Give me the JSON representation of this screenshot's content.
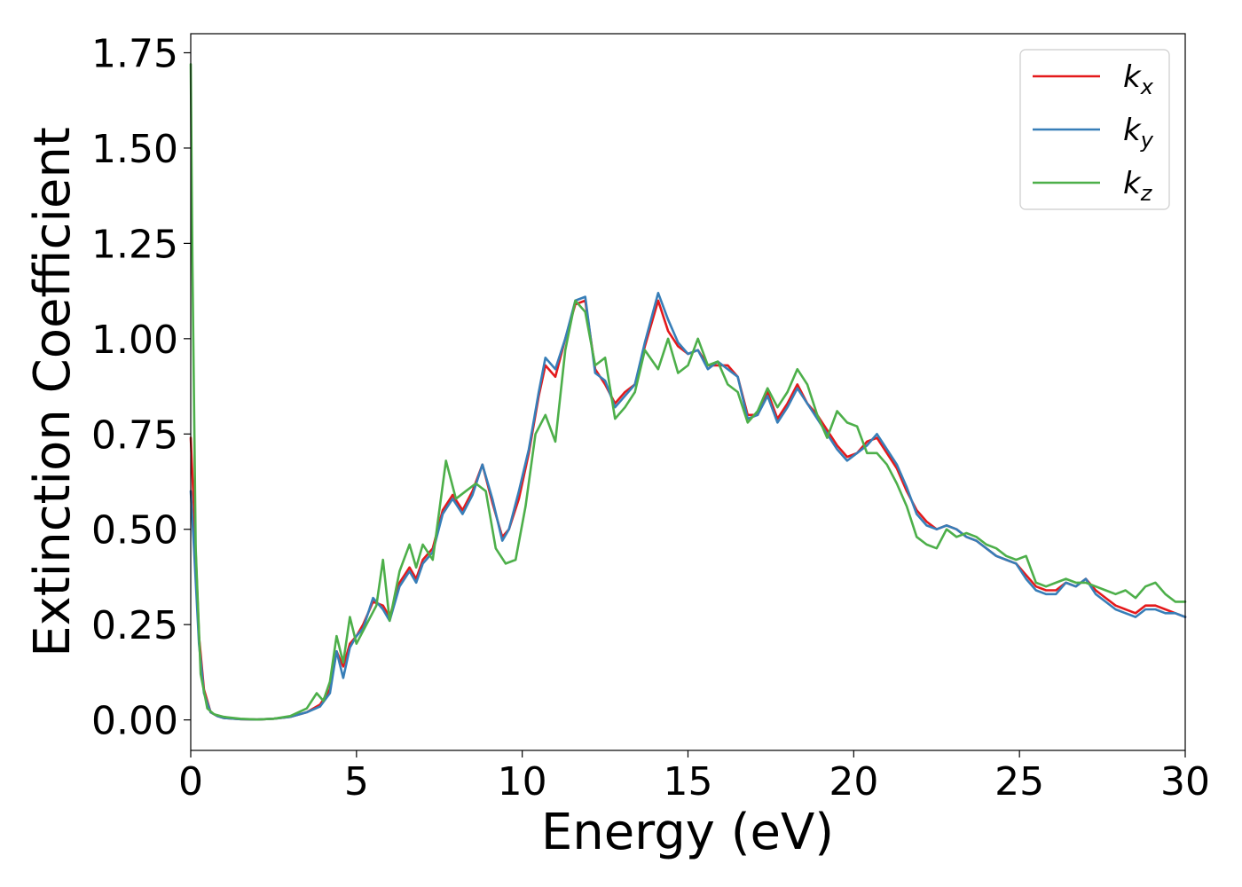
{
  "chart_data": {
    "type": "line",
    "xlabel": "Energy (eV)",
    "ylabel": "Extinction Coefficient",
    "xlim": [
      0,
      30
    ],
    "ylim": [
      -0.08,
      1.8
    ],
    "xticks": [
      "0",
      "5",
      "10",
      "15",
      "20",
      "25",
      "30"
    ],
    "yticks": [
      "0.00",
      "0.25",
      "0.50",
      "0.75",
      "1.00",
      "1.25",
      "1.50",
      "1.75"
    ],
    "grid": false,
    "legend_position": "top-right",
    "series": [
      {
        "name": "k_x",
        "label_main": "k",
        "label_sub": "x",
        "color": "#e41a1c",
        "x": [
          0,
          0.1,
          0.25,
          0.4,
          0.6,
          0.8,
          1.0,
          1.5,
          2.0,
          2.5,
          3.0,
          3.5,
          3.9,
          4.2,
          4.4,
          4.6,
          4.8,
          5.0,
          5.2,
          5.5,
          5.8,
          6.0,
          6.3,
          6.6,
          6.8,
          7.0,
          7.3,
          7.6,
          7.9,
          8.2,
          8.5,
          8.8,
          9.1,
          9.4,
          9.6,
          9.9,
          10.2,
          10.5,
          10.7,
          11.0,
          11.3,
          11.6,
          11.9,
          12.2,
          12.5,
          12.8,
          13.1,
          13.4,
          13.7,
          14.1,
          14.4,
          14.7,
          15.0,
          15.3,
          15.6,
          15.9,
          16.2,
          16.5,
          16.8,
          17.1,
          17.4,
          17.7,
          18.0,
          18.3,
          18.6,
          18.9,
          19.2,
          19.5,
          19.8,
          20.1,
          20.4,
          20.7,
          21.0,
          21.3,
          21.6,
          21.9,
          22.2,
          22.5,
          22.8,
          23.1,
          23.4,
          23.7,
          24.0,
          24.3,
          24.6,
          24.9,
          25.2,
          25.5,
          25.8,
          26.1,
          26.4,
          26.7,
          27.0,
          27.3,
          27.6,
          27.9,
          28.2,
          28.5,
          28.8,
          29.1,
          29.4,
          29.7,
          30.0
        ],
        "y": [
          0.74,
          0.55,
          0.22,
          0.08,
          0.02,
          0.01,
          0.005,
          0.002,
          0.001,
          0.003,
          0.008,
          0.02,
          0.04,
          0.08,
          0.18,
          0.14,
          0.2,
          0.22,
          0.25,
          0.31,
          0.3,
          0.27,
          0.36,
          0.4,
          0.37,
          0.42,
          0.45,
          0.55,
          0.59,
          0.55,
          0.6,
          0.67,
          0.57,
          0.48,
          0.5,
          0.58,
          0.7,
          0.85,
          0.93,
          0.9,
          1.0,
          1.09,
          1.1,
          0.92,
          0.88,
          0.83,
          0.86,
          0.88,
          0.98,
          1.1,
          1.02,
          0.98,
          0.96,
          0.97,
          0.93,
          0.93,
          0.93,
          0.9,
          0.8,
          0.8,
          0.86,
          0.79,
          0.83,
          0.88,
          0.83,
          0.8,
          0.76,
          0.72,
          0.69,
          0.7,
          0.73,
          0.74,
          0.7,
          0.66,
          0.6,
          0.55,
          0.52,
          0.5,
          0.51,
          0.5,
          0.48,
          0.47,
          0.45,
          0.43,
          0.42,
          0.41,
          0.38,
          0.35,
          0.34,
          0.34,
          0.36,
          0.35,
          0.37,
          0.34,
          0.32,
          0.3,
          0.29,
          0.28,
          0.3,
          0.3,
          0.29,
          0.28,
          0.27
        ]
      },
      {
        "name": "k_y",
        "label_main": "k",
        "label_sub": "y",
        "color": "#377eb8",
        "x": [
          0,
          0.1,
          0.25,
          0.4,
          0.6,
          0.8,
          1.0,
          1.5,
          2.0,
          2.5,
          3.0,
          3.5,
          3.9,
          4.2,
          4.4,
          4.6,
          4.8,
          5.0,
          5.2,
          5.5,
          5.8,
          6.0,
          6.3,
          6.6,
          6.8,
          7.0,
          7.3,
          7.6,
          7.9,
          8.2,
          8.5,
          8.8,
          9.1,
          9.4,
          9.6,
          9.9,
          10.2,
          10.5,
          10.7,
          11.0,
          11.3,
          11.6,
          11.9,
          12.2,
          12.5,
          12.8,
          13.1,
          13.4,
          13.7,
          14.1,
          14.4,
          14.7,
          15.0,
          15.3,
          15.6,
          15.9,
          16.2,
          16.5,
          16.8,
          17.1,
          17.4,
          17.7,
          18.0,
          18.3,
          18.6,
          18.9,
          19.2,
          19.5,
          19.8,
          20.1,
          20.4,
          20.7,
          21.0,
          21.3,
          21.6,
          21.9,
          22.2,
          22.5,
          22.8,
          23.1,
          23.4,
          23.7,
          24.0,
          24.3,
          24.6,
          24.9,
          25.2,
          25.5,
          25.8,
          26.1,
          26.4,
          26.7,
          27.0,
          27.3,
          27.6,
          27.9,
          28.2,
          28.5,
          28.8,
          29.1,
          29.4,
          29.7,
          30.0
        ],
        "y": [
          0.6,
          0.45,
          0.2,
          0.07,
          0.02,
          0.01,
          0.005,
          0.002,
          0.001,
          0.003,
          0.008,
          0.02,
          0.035,
          0.07,
          0.18,
          0.11,
          0.19,
          0.22,
          0.24,
          0.32,
          0.29,
          0.26,
          0.35,
          0.39,
          0.36,
          0.41,
          0.44,
          0.54,
          0.58,
          0.54,
          0.59,
          0.67,
          0.58,
          0.47,
          0.5,
          0.6,
          0.71,
          0.86,
          0.95,
          0.92,
          1.0,
          1.1,
          1.11,
          0.91,
          0.89,
          0.82,
          0.85,
          0.88,
          0.99,
          1.12,
          1.05,
          0.99,
          0.96,
          0.97,
          0.92,
          0.94,
          0.92,
          0.9,
          0.79,
          0.8,
          0.85,
          0.78,
          0.82,
          0.87,
          0.83,
          0.79,
          0.75,
          0.71,
          0.68,
          0.7,
          0.72,
          0.75,
          0.71,
          0.67,
          0.61,
          0.54,
          0.51,
          0.5,
          0.51,
          0.5,
          0.48,
          0.47,
          0.45,
          0.43,
          0.42,
          0.41,
          0.37,
          0.34,
          0.33,
          0.33,
          0.36,
          0.35,
          0.37,
          0.33,
          0.31,
          0.29,
          0.28,
          0.27,
          0.29,
          0.29,
          0.28,
          0.28,
          0.27
        ]
      },
      {
        "name": "k_z",
        "label_main": "k",
        "label_sub": "z",
        "color": "#4daf4a",
        "x": [
          0,
          0.05,
          0.15,
          0.3,
          0.5,
          0.7,
          1.0,
          1.5,
          2.0,
          2.5,
          3.0,
          3.5,
          3.8,
          4.0,
          4.2,
          4.4,
          4.6,
          4.8,
          5.0,
          5.3,
          5.6,
          5.8,
          6.0,
          6.3,
          6.6,
          6.8,
          7.0,
          7.3,
          7.7,
          8.0,
          8.3,
          8.6,
          8.9,
          9.2,
          9.5,
          9.8,
          10.1,
          10.4,
          10.7,
          11.0,
          11.3,
          11.6,
          11.9,
          12.2,
          12.5,
          12.8,
          13.1,
          13.4,
          13.7,
          14.1,
          14.4,
          14.7,
          15.0,
          15.3,
          15.6,
          15.9,
          16.2,
          16.5,
          16.8,
          17.1,
          17.4,
          17.7,
          18.0,
          18.3,
          18.6,
          18.9,
          19.2,
          19.5,
          19.8,
          20.1,
          20.4,
          20.7,
          21.0,
          21.3,
          21.6,
          21.9,
          22.2,
          22.5,
          22.8,
          23.1,
          23.4,
          23.7,
          24.0,
          24.3,
          24.6,
          24.9,
          25.2,
          25.5,
          25.8,
          26.1,
          26.4,
          26.7,
          27.0,
          27.3,
          27.6,
          27.9,
          28.2,
          28.5,
          28.8,
          29.1,
          29.4,
          29.7,
          30.0
        ],
        "y": [
          1.72,
          1.2,
          0.45,
          0.12,
          0.03,
          0.015,
          0.008,
          0.003,
          0.001,
          0.003,
          0.01,
          0.03,
          0.07,
          0.05,
          0.1,
          0.22,
          0.15,
          0.27,
          0.2,
          0.25,
          0.3,
          0.42,
          0.26,
          0.39,
          0.46,
          0.4,
          0.46,
          0.42,
          0.68,
          0.58,
          0.6,
          0.62,
          0.6,
          0.45,
          0.41,
          0.42,
          0.56,
          0.75,
          0.8,
          0.73,
          0.97,
          1.1,
          1.07,
          0.93,
          0.95,
          0.79,
          0.82,
          0.86,
          0.97,
          0.92,
          1.0,
          0.91,
          0.93,
          1.0,
          0.93,
          0.94,
          0.88,
          0.86,
          0.78,
          0.81,
          0.87,
          0.82,
          0.86,
          0.92,
          0.88,
          0.8,
          0.74,
          0.81,
          0.78,
          0.77,
          0.7,
          0.7,
          0.67,
          0.62,
          0.56,
          0.48,
          0.46,
          0.45,
          0.5,
          0.48,
          0.49,
          0.48,
          0.46,
          0.45,
          0.43,
          0.42,
          0.43,
          0.36,
          0.35,
          0.36,
          0.37,
          0.36,
          0.36,
          0.35,
          0.34,
          0.33,
          0.34,
          0.32,
          0.35,
          0.36,
          0.33,
          0.31,
          0.31
        ]
      }
    ]
  }
}
